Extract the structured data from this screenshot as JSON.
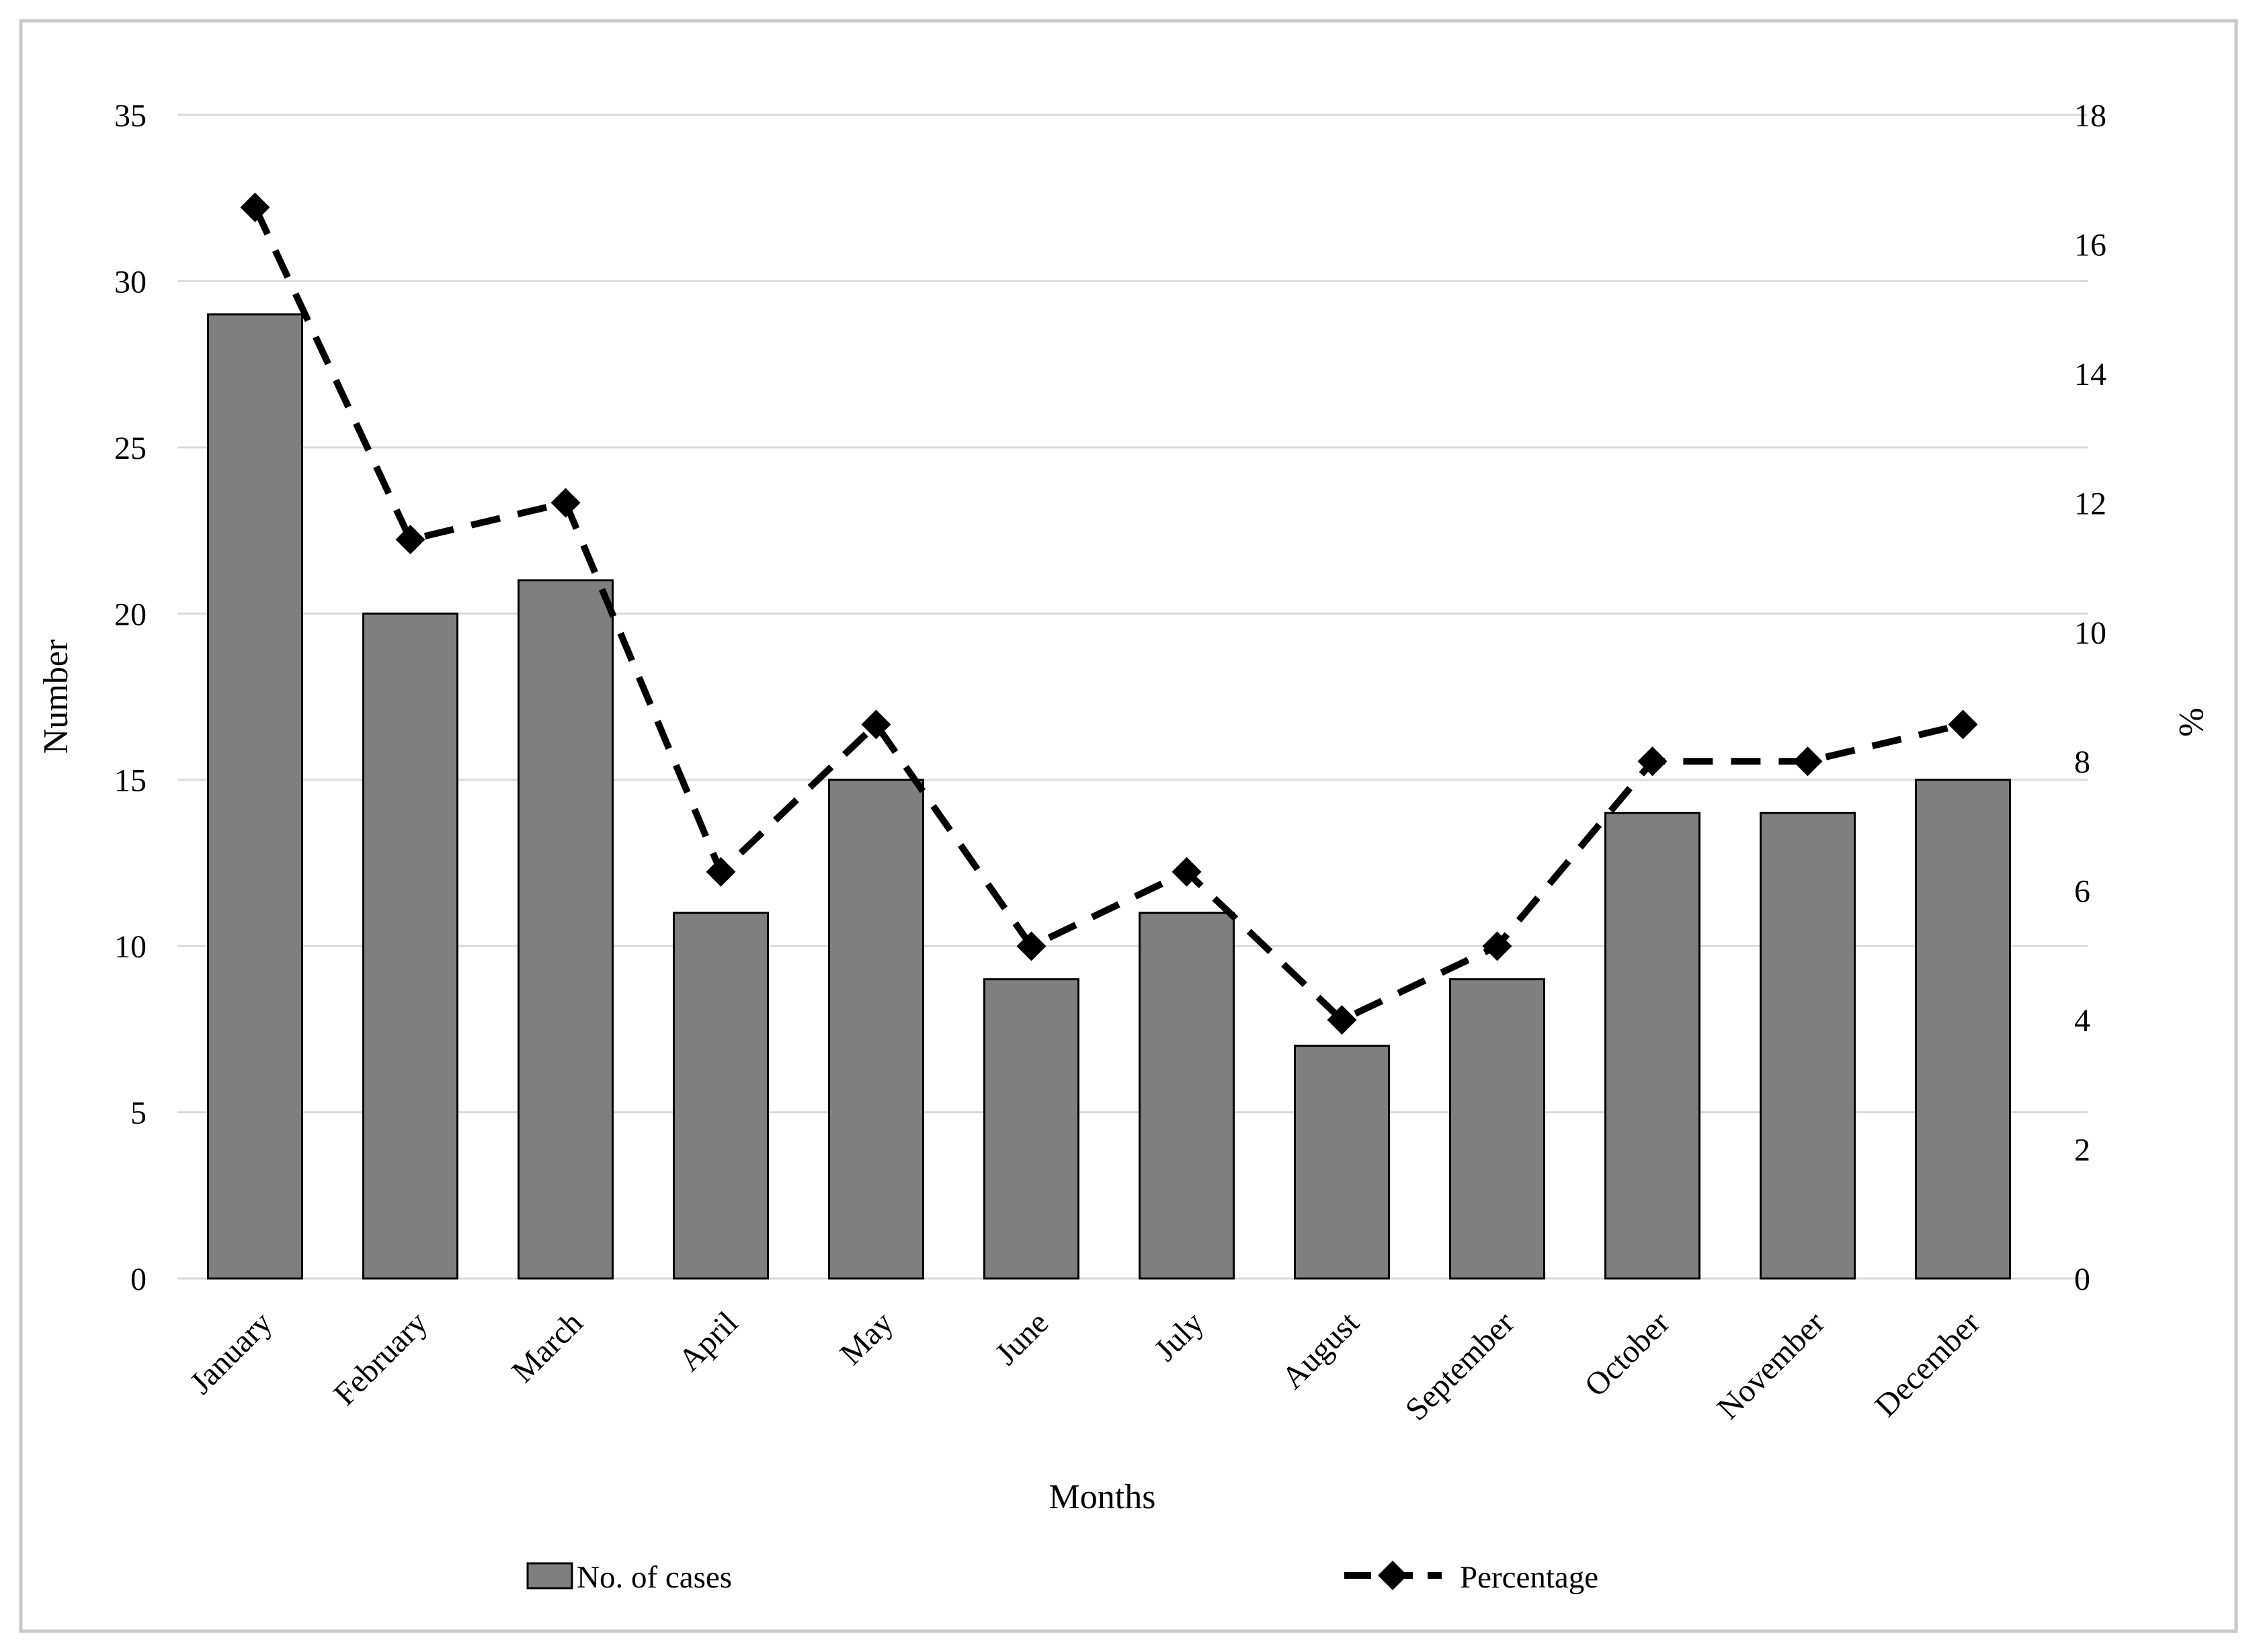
{
  "chart_data": {
    "type": "bar+line",
    "title": "",
    "categories": [
      "January",
      "February",
      "March",
      "April",
      "May",
      "June",
      "July",
      "August",
      "September",
      "October",
      "November",
      "December"
    ],
    "series": [
      {
        "name": "No. of cases",
        "type": "bar",
        "axis": "left",
        "values": [
          29,
          20,
          21,
          11,
          15,
          9,
          11,
          7,
          9,
          14,
          14,
          15
        ],
        "fill_color": "#7f7f7f",
        "border_color": "#000000"
      },
      {
        "name": "Percentage",
        "type": "line",
        "axis": "right",
        "style": "dashed",
        "marker": "diamond",
        "values": [
          16.57,
          11.43,
          12.0,
          6.29,
          8.57,
          5.14,
          6.29,
          4.0,
          5.14,
          8.0,
          8.0,
          8.57
        ],
        "line_color": "#000000"
      }
    ],
    "x_axis": {
      "title": "Months"
    },
    "left_axis": {
      "title": "Number",
      "min": 0,
      "max": 35,
      "step": 5,
      "ticks": [
        0,
        5,
        10,
        15,
        20,
        25,
        30,
        35
      ]
    },
    "right_axis": {
      "title": "%",
      "min": 0,
      "max": 18,
      "step": 2,
      "ticks": [
        0,
        2,
        4,
        6,
        8,
        10,
        12,
        14,
        16,
        18
      ]
    },
    "legend": {
      "position": "bottom",
      "entries": [
        "No. of cases",
        "Percentage"
      ]
    },
    "grid": true,
    "colors": {
      "gridline": "#d9d9d9",
      "figure_border": "#c9c9c9",
      "background": "#ffffff",
      "text": "#000000"
    }
  }
}
